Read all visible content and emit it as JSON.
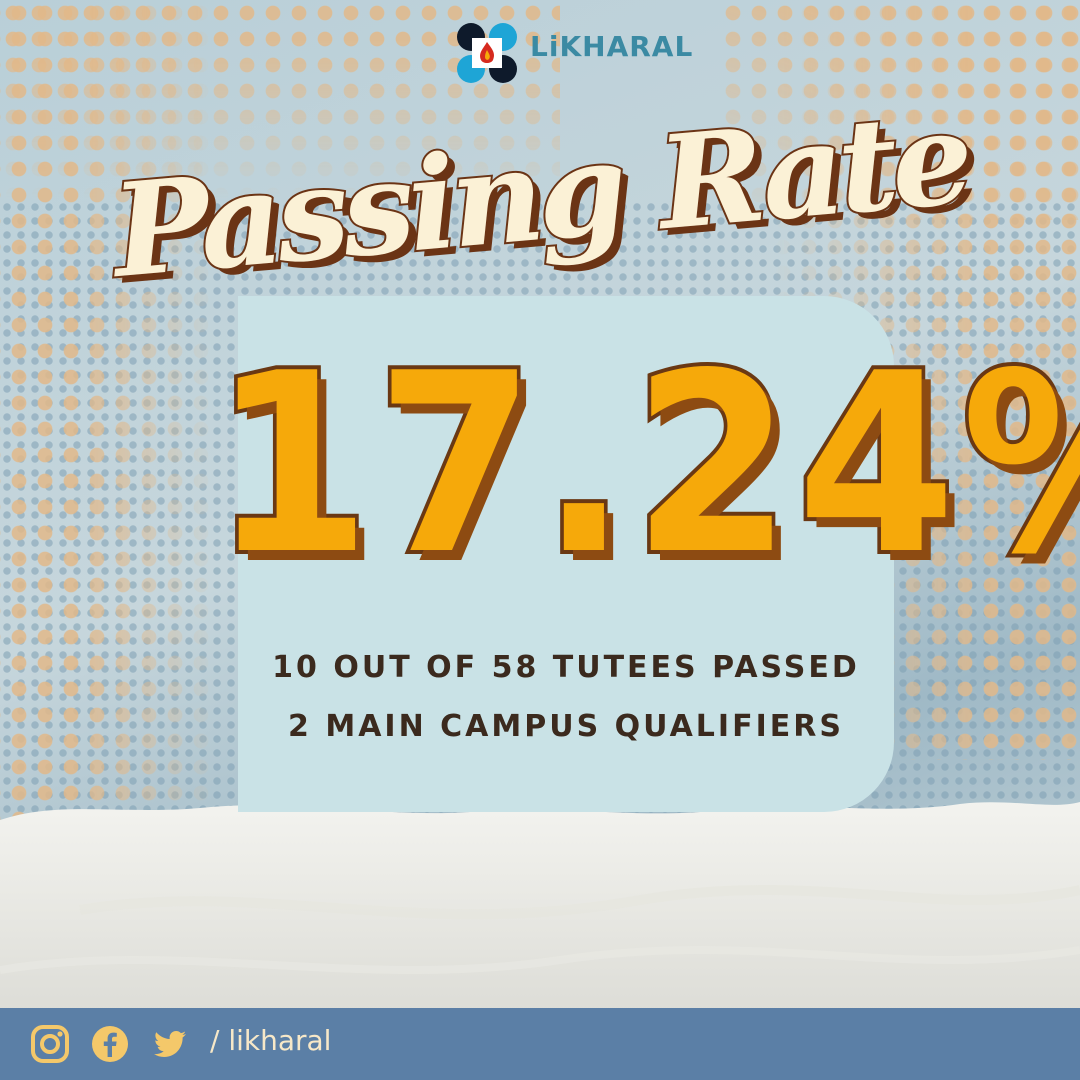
{
  "brand": {
    "name": "LiKHARAL"
  },
  "title": "Passing Rate",
  "rate": "17.24%",
  "stats": [
    "10 OUT OF 58 TUTEES PASSED",
    "2 MAIN CAMPUS QUALIFIERS"
  ],
  "footer": {
    "handle": "/ likharal",
    "icons": [
      "instagram-icon",
      "facebook-icon",
      "twitter-icon"
    ]
  },
  "colors": {
    "rate_fill": "#f6a90a",
    "rate_outline": "#6a3813",
    "title_fill": "#fbf1d6",
    "card": "#c9e2e6",
    "footer": "#5b7fa6",
    "footer_text": "#f7e8c8"
  }
}
